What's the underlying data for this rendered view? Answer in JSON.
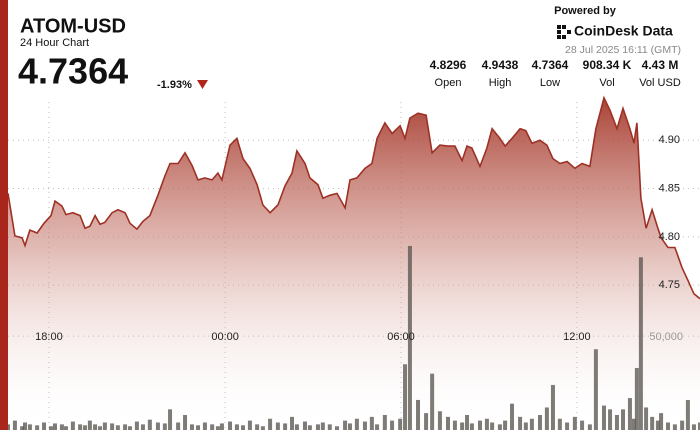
{
  "header": {
    "title": "ATOM-USD",
    "subtitle": "24 Hour Chart",
    "price": "4.7364",
    "change": "-1.93%"
  },
  "branding": {
    "powered_by": "Powered by",
    "brand": "CoinDesk Data",
    "timestamp": "28 Jul 2025 16:11 (GMT)"
  },
  "stats": [
    {
      "value": "4.8296",
      "label": "Open"
    },
    {
      "value": "4.9438",
      "label": "High"
    },
    {
      "value": "4.7364",
      "label": "Low"
    },
    {
      "value": "908.34 K",
      "label": "Vol"
    },
    {
      "value": "4.43 M",
      "label": "Vol USD"
    }
  ],
  "chart_data": {
    "type": "area",
    "grid": true,
    "x": [
      0,
      0.24,
      0.49,
      0.59,
      0.76,
      1.01,
      1.25,
      1.49,
      1.63,
      1.87,
      2.01,
      2.25,
      2.5,
      2.67,
      2.84,
      3.02,
      3.19,
      3.36,
      3.61,
      3.81,
      4.06,
      4.23,
      4.47,
      4.68,
      4.92,
      5.2,
      5.44,
      5.62,
      5.9,
      6.14,
      6.38,
      6.59,
      6.83,
      7.08,
      7.28,
      7.42,
      7.7,
      7.94,
      8.15,
      8.39,
      8.64,
      8.84,
      9.09,
      9.36,
      9.61,
      9.85,
      10.02,
      10.3,
      10.47,
      10.75,
      10.92,
      11.16,
      11.41,
      11.69,
      11.86,
      12.1,
      12.38,
      12.62,
      12.8,
      13.07,
      13.32,
      13.6,
      13.77,
      13.94,
      14.22,
      14.5,
      14.71,
      14.98,
      15.26,
      15.5,
      15.75,
      15.92,
      16.09,
      16.37,
      16.61,
      16.79,
      17.06,
      17.24,
      17.48,
      17.76,
      17.96,
      18.17,
      18.45,
      18.69,
      18.9,
      19.14,
      19.39,
      19.66,
      19.91,
      20.18,
      20.39,
      20.67,
      20.88,
      21.12,
      21.33,
      21.57,
      21.71,
      21.81,
      21.95,
      22.13,
      22.34,
      22.54,
      22.65,
      22.89,
      23.13,
      23.38,
      23.58,
      23.79,
      24
    ],
    "xlim": [
      0,
      24
    ],
    "xticks": [
      {
        "value": 1.42,
        "label": "18:00"
      },
      {
        "value": 7.53,
        "label": "00:00"
      },
      {
        "value": 13.63,
        "label": "06:00"
      },
      {
        "value": 19.73,
        "label": "12:00"
      }
    ],
    "ylim": [
      4.6,
      4.95
    ],
    "yticks": [
      4.75,
      {
        "value": 4.8,
        "label": "4.80"
      },
      4.85,
      {
        "value": 4.9,
        "label": "4.90"
      }
    ],
    "y2lim": [
      0,
      180000
    ],
    "y2ticks": [
      {
        "value": 50000,
        "label": "50,000"
      }
    ],
    "series": [
      {
        "type": "area",
        "color": "#9e3125",
        "values": [
          4.845,
          4.801,
          4.799,
          4.791,
          4.807,
          4.804,
          4.814,
          4.822,
          4.837,
          4.832,
          4.823,
          4.825,
          4.822,
          4.809,
          4.811,
          4.822,
          4.813,
          4.815,
          4.825,
          4.828,
          4.825,
          4.814,
          4.808,
          4.816,
          4.822,
          4.843,
          4.863,
          4.876,
          4.876,
          4.887,
          4.874,
          4.859,
          4.861,
          4.859,
          4.866,
          4.859,
          4.895,
          4.902,
          4.881,
          4.871,
          4.854,
          4.833,
          4.825,
          4.833,
          4.853,
          4.866,
          4.889,
          4.876,
          4.861,
          4.854,
          4.84,
          4.843,
          4.845,
          4.83,
          4.859,
          4.861,
          4.871,
          4.876,
          4.902,
          4.918,
          4.907,
          4.915,
          4.902,
          4.923,
          4.928,
          4.926,
          4.887,
          4.895,
          4.894,
          4.894,
          4.879,
          4.894,
          4.892,
          4.873,
          4.892,
          4.912,
          4.902,
          4.894,
          4.902,
          4.912,
          4.91,
          4.897,
          4.9,
          4.895,
          4.881,
          4.876,
          4.878,
          4.871,
          4.876,
          4.873,
          4.912,
          4.944,
          4.931,
          4.912,
          4.933,
          4.912,
          4.897,
          4.918,
          4.84,
          4.809,
          4.828,
          4.809,
          4.799,
          4.789,
          4.789,
          4.768,
          4.755,
          4.741,
          4.736
        ]
      },
      {
        "type": "bar",
        "axis": "y2",
        "color": "#5f5a55",
        "values": [
          3000,
          5000,
          2000,
          4000,
          3000,
          2500,
          4000,
          2000,
          3500,
          3000,
          2000,
          4500,
          3000,
          2500,
          5000,
          3000,
          2000,
          4000,
          3500,
          2500,
          3000,
          2000,
          4500,
          3000,
          5500,
          4000,
          3500,
          11000,
          4000,
          8000,
          3000,
          2500,
          4000,
          3000,
          2000,
          3500,
          4500,
          3000,
          2500,
          5000,
          3000,
          2000,
          6000,
          4000,
          3500,
          7000,
          3000,
          4500,
          2500,
          3000,
          4000,
          3000,
          2000,
          5000,
          3500,
          6000,
          4500,
          7000,
          3000,
          8000,
          5000,
          6000,
          35000,
          98000,
          16000,
          9000,
          30000,
          10000,
          7000,
          5000,
          4000,
          8000,
          3500,
          5000,
          6000,
          4000,
          3000,
          5000,
          14000,
          7000,
          4000,
          6000,
          8000,
          12000,
          24000,
          6000,
          4000,
          7000,
          5000,
          3000,
          43000,
          13000,
          11000,
          8000,
          11000,
          17000,
          6000,
          33000,
          92000,
          12000,
          7000,
          5000,
          9000,
          4000,
          3000,
          5000,
          16000,
          3000,
          4000
        ]
      }
    ]
  }
}
